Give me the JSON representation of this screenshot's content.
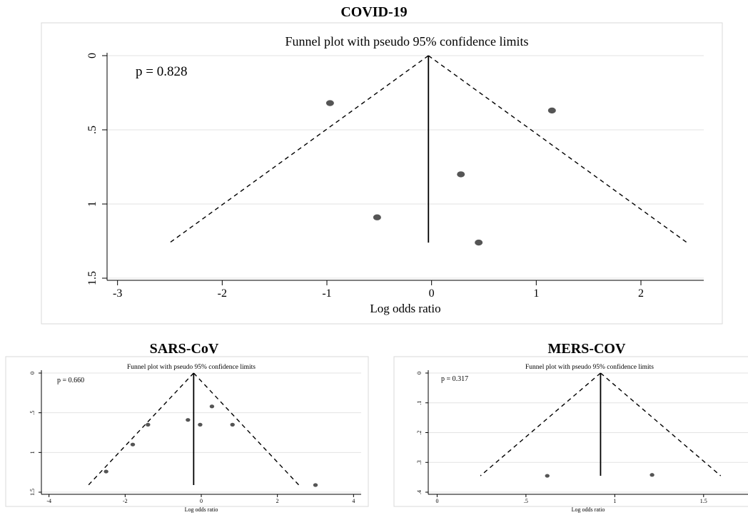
{
  "panels": [
    {
      "heading": "COVID-19",
      "chart_data": {
        "type": "scatter",
        "title": "Funnel plot with pseudo 95% confidence limits",
        "xlabel": "Log odds ratio",
        "ylabel": "",
        "annotation": "p = 0.828",
        "xlim": [
          -3.1,
          2.6
        ],
        "ylim": [
          0,
          1.5
        ],
        "y_reversed": true,
        "xticks": [
          -3,
          -2,
          -1,
          0,
          1,
          2
        ],
        "xtick_labels": [
          "-3",
          "-2",
          "-1",
          "0",
          "1",
          "2"
        ],
        "yticks": [
          0,
          0.5,
          1,
          1.5
        ],
        "ytick_labels": [
          "0",
          ".5",
          "1",
          "1.5"
        ],
        "grid": true,
        "pooled_estimate": -0.03,
        "funnel_max_se": 1.26,
        "points": [
          {
            "x": -0.97,
            "y": 0.32
          },
          {
            "x": 1.15,
            "y": 0.37
          },
          {
            "x": 0.28,
            "y": 0.8
          },
          {
            "x": -0.52,
            "y": 1.09
          },
          {
            "x": 0.45,
            "y": 1.26
          }
        ]
      }
    },
    {
      "heading": "SARS-CoV",
      "chart_data": {
        "type": "scatter",
        "title": "Funnel plot with pseudo 95% confidence limits",
        "xlabel": "Log odds ratio",
        "ylabel": "",
        "annotation": "p = 0.660",
        "xlim": [
          -4.2,
          4.2
        ],
        "ylim": [
          0,
          1.5
        ],
        "y_reversed": true,
        "xticks": [
          -4,
          -2,
          0,
          2,
          4
        ],
        "xtick_labels": [
          "-4",
          "-2",
          "0",
          "2",
          "4"
        ],
        "yticks": [
          0,
          0.5,
          1,
          1.5
        ],
        "ytick_labels": [
          "0",
          ".5",
          "1",
          "1.5"
        ],
        "grid": true,
        "pooled_estimate": -0.2,
        "funnel_max_se": 1.41,
        "points": [
          {
            "x": 0.28,
            "y": 0.42
          },
          {
            "x": -0.35,
            "y": 0.59
          },
          {
            "x": -1.4,
            "y": 0.65
          },
          {
            "x": -0.03,
            "y": 0.65
          },
          {
            "x": 0.82,
            "y": 0.65
          },
          {
            "x": -1.8,
            "y": 0.9
          },
          {
            "x": -2.5,
            "y": 1.24
          },
          {
            "x": 3.0,
            "y": 1.41
          }
        ]
      }
    },
    {
      "heading": "MERS-COV",
      "chart_data": {
        "type": "scatter",
        "title": "Funnel plot with pseudo 95% confidence limits",
        "xlabel": "Log odds ratio",
        "ylabel": "",
        "annotation": "p = 0.317",
        "xlim": [
          -0.05,
          1.75
        ],
        "ylim": [
          0,
          0.4
        ],
        "y_reversed": true,
        "xticks": [
          0,
          0.5,
          1,
          1.5
        ],
        "xtick_labels": [
          "0",
          ".5",
          "1",
          "1.5"
        ],
        "yticks": [
          0,
          0.1,
          0.2,
          0.3,
          0.4
        ],
        "ytick_labels": [
          "0",
          ".1",
          ".2",
          ".3",
          ".4"
        ],
        "grid": true,
        "pooled_estimate": 0.92,
        "funnel_max_se": 0.345,
        "points": [
          {
            "x": 0.62,
            "y": 0.345
          },
          {
            "x": 1.21,
            "y": 0.342
          }
        ]
      }
    }
  ]
}
